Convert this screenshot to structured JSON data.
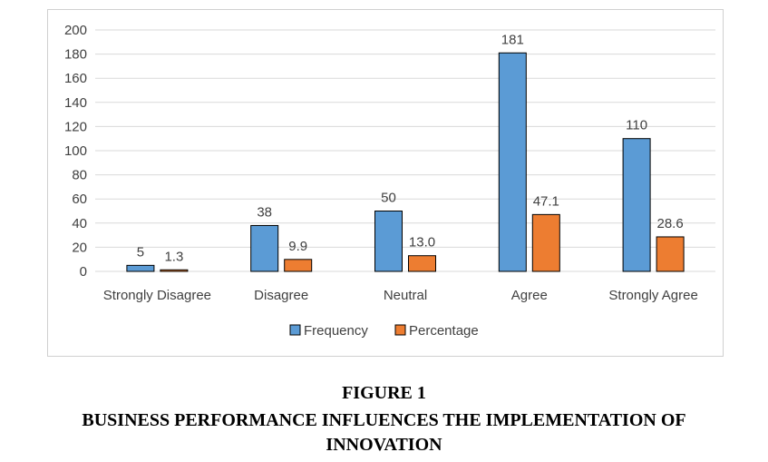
{
  "figure": {
    "number": "FIGURE 1",
    "title_line1": "BUSINESS PERFORMANCE INFLUENCES THE IMPLEMENTATION OF",
    "title_line2": "INNOVATION"
  },
  "chart_data": {
    "type": "bar",
    "categories": [
      "Strongly Disagree",
      "Disagree",
      "Neutral",
      "Agree",
      "Strongly Agree"
    ],
    "series": [
      {
        "name": "Frequency",
        "values": [
          5,
          38,
          50,
          181,
          110
        ],
        "labels": [
          "5",
          "38",
          "50",
          "181",
          "110"
        ],
        "color": "#5b9bd5"
      },
      {
        "name": "Percentage",
        "values": [
          1.3,
          9.9,
          13.0,
          47.1,
          28.6
        ],
        "labels": [
          "1.3",
          "9.9",
          "13.0",
          "47.1",
          "28.6"
        ],
        "color": "#ed7d31"
      }
    ],
    "yticks": [
      "0",
      "20",
      "40",
      "60",
      "80",
      "100",
      "120",
      "140",
      "160",
      "180",
      "200"
    ],
    "ylim": [
      0,
      200
    ],
    "grid": true,
    "legend_position": "bottom",
    "title": "",
    "xlabel": "",
    "ylabel": ""
  }
}
